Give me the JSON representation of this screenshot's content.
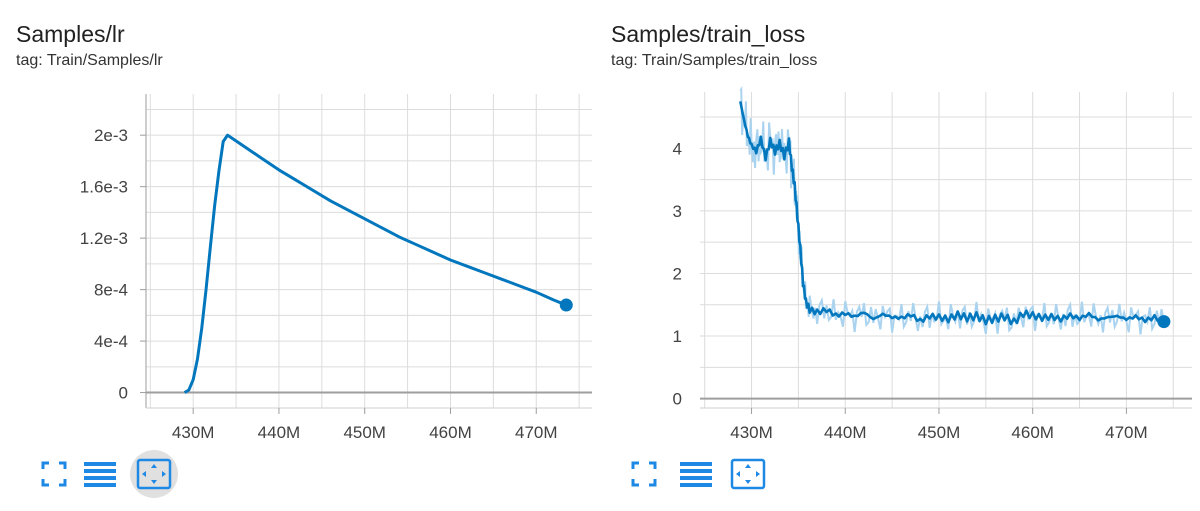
{
  "cards": [
    {
      "id": "lr",
      "title": "Samples/lr",
      "tag": "tag: Train/Samples/lr",
      "toolbar": {
        "fit_active": true
      },
      "chart_data": {
        "type": "line",
        "x_unit": "M",
        "xlim": [
          424.5,
          476.5
        ],
        "ylim": [
          -0.00012,
          0.00232
        ],
        "x_ticks": [
          430,
          440,
          450,
          460,
          470
        ],
        "x_tick_labels": [
          "430M",
          "440M",
          "450M",
          "460M",
          "470M"
        ],
        "y_ticks": [
          0,
          0.0004,
          0.0008,
          0.0012,
          0.0016,
          0.002
        ],
        "y_tick_labels": [
          "0",
          "4e-4",
          "8e-4",
          "1.2e-3",
          "1.6e-3",
          "2e-3"
        ],
        "grid": true,
        "series": [
          {
            "x": [
              429,
              429.5,
              430,
              430.5,
              431,
              431.5,
              432,
              432.5,
              433,
              433.5,
              434,
              436,
              438,
              440,
              442,
              444,
              446,
              448,
              450,
              452,
              454,
              456,
              458,
              460,
              462,
              464,
              466,
              468,
              470,
              472,
              473.5
            ],
            "y": [
              0,
              2e-05,
              0.0001,
              0.00026,
              0.0005,
              0.0008,
              0.00113,
              0.00145,
              0.00172,
              0.00195,
              0.002,
              0.00191,
              0.00182,
              0.00173,
              0.00165,
              0.00157,
              0.00149,
              0.00142,
              0.00135,
              0.00128,
              0.00121,
              0.00115,
              0.00109,
              0.00103,
              0.00098,
              0.00093,
              0.00088,
              0.00083,
              0.00078,
              0.00072,
              0.00068
            ],
            "color": "#0277bd"
          }
        ]
      }
    },
    {
      "id": "loss",
      "title": "Samples/train_loss",
      "tag": "tag: Train/Samples/train_loss",
      "toolbar": {
        "fit_active": false
      },
      "chart_data": {
        "type": "line",
        "x_unit": "M",
        "xlim": [
          424.5,
          477
        ],
        "ylim": [
          -0.15,
          4.9
        ],
        "x_ticks": [
          430,
          440,
          450,
          460,
          470
        ],
        "x_tick_labels": [
          "430M",
          "440M",
          "450M",
          "460M",
          "470M"
        ],
        "y_ticks": [
          0,
          1,
          2,
          3,
          4
        ],
        "y_tick_labels": [
          "0",
          "1",
          "2",
          "3",
          "4"
        ],
        "grid": true,
        "series": [
          {
            "x": [
              428.8,
              429.2,
              429.6,
              430,
              430.5,
              431,
              431.5,
              432,
              432.5,
              433,
              433.5,
              434,
              434.3,
              434.6,
              434.9,
              435.2,
              435.5,
              435.8,
              436.2,
              437,
              438,
              439,
              440,
              441,
              442,
              443,
              444,
              445,
              446,
              447,
              448,
              449,
              450,
              451,
              452,
              453,
              454,
              455,
              456,
              457,
              458,
              459,
              460,
              461,
              462,
              463,
              464,
              465,
              466,
              467,
              468,
              469,
              470,
              471,
              472,
              473,
              474
            ],
            "y": [
              4.75,
              4.45,
              4.2,
              4.05,
              3.95,
              4.15,
              3.85,
              4.12,
              3.95,
              4.08,
              3.88,
              4.1,
              3.7,
              3.4,
              2.9,
              2.4,
              1.85,
              1.55,
              1.42,
              1.38,
              1.42,
              1.33,
              1.36,
              1.31,
              1.38,
              1.27,
              1.35,
              1.3,
              1.29,
              1.34,
              1.24,
              1.32,
              1.3,
              1.27,
              1.34,
              1.29,
              1.32,
              1.25,
              1.28,
              1.31,
              1.22,
              1.36,
              1.33,
              1.29,
              1.31,
              1.27,
              1.33,
              1.28,
              1.35,
              1.26,
              1.3,
              1.32,
              1.27,
              1.31,
              1.25,
              1.3,
              1.23
            ],
            "color": "#0277bd",
            "raw_color": "#a9d3ef"
          }
        ]
      }
    }
  ]
}
